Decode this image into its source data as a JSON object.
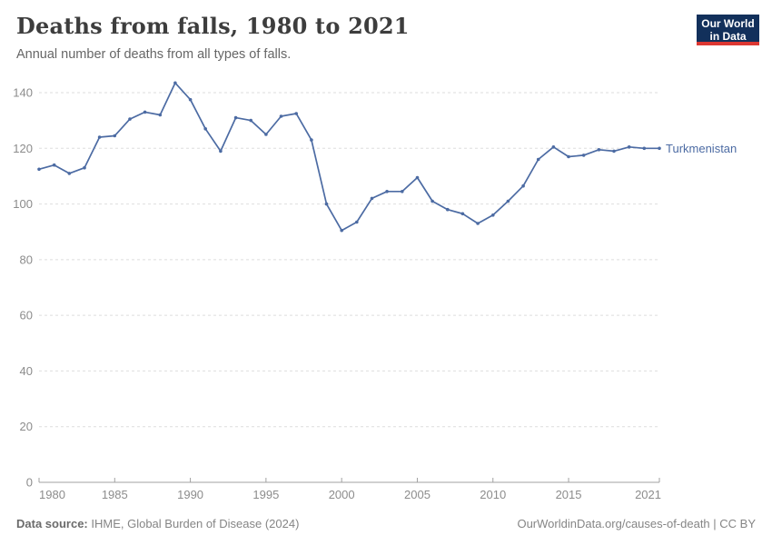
{
  "header": {
    "title": "Deaths from falls, 1980 to 2021",
    "subtitle": "Annual number of deaths from all types of falls.",
    "logo": {
      "line1": "Our World",
      "line2": "in Data",
      "bg_color": "#12305b",
      "accent_color": "#dc3732"
    }
  },
  "chart_data": {
    "type": "line",
    "title": "Deaths from falls, 1980 to 2021",
    "subtitle": "Annual number of deaths from all types of falls.",
    "xlabel": "",
    "ylabel": "",
    "x": [
      1980,
      1981,
      1982,
      1983,
      1984,
      1985,
      1986,
      1987,
      1988,
      1989,
      1990,
      1991,
      1992,
      1993,
      1994,
      1995,
      1996,
      1997,
      1998,
      1999,
      2000,
      2001,
      2002,
      2003,
      2004,
      2005,
      2006,
      2007,
      2008,
      2009,
      2010,
      2011,
      2012,
      2013,
      2014,
      2015,
      2016,
      2017,
      2018,
      2019,
      2020,
      2021
    ],
    "series": [
      {
        "name": "Turkmenistan",
        "color": "#4c6ba3",
        "values": [
          112.5,
          114,
          111,
          113,
          124,
          124.5,
          130.5,
          133,
          132,
          143.5,
          137.5,
          127,
          119,
          131,
          130,
          125,
          131.5,
          132.5,
          123,
          100,
          90.5,
          93.5,
          102,
          104.5,
          104.5,
          109.5,
          101,
          98,
          96.5,
          93,
          96,
          101,
          106.5,
          116,
          120.5,
          117,
          117.5,
          119.5,
          119,
          120.5,
          120,
          120
        ]
      }
    ],
    "x_ticks": [
      1980,
      1985,
      1990,
      1995,
      2000,
      2005,
      2010,
      2015,
      2021
    ],
    "y_ticks": [
      0,
      20,
      40,
      60,
      80,
      100,
      120,
      140
    ],
    "ylim": [
      0,
      146
    ],
    "xlim": [
      1980,
      2021
    ],
    "grid": "horizontal-dashed",
    "legend_position": "end-of-line"
  },
  "footer": {
    "source_label": "Data source:",
    "source_text": "IHME, Global Burden of Disease (2024)",
    "credit": "OurWorldinData.org/causes-of-death | CC BY"
  }
}
